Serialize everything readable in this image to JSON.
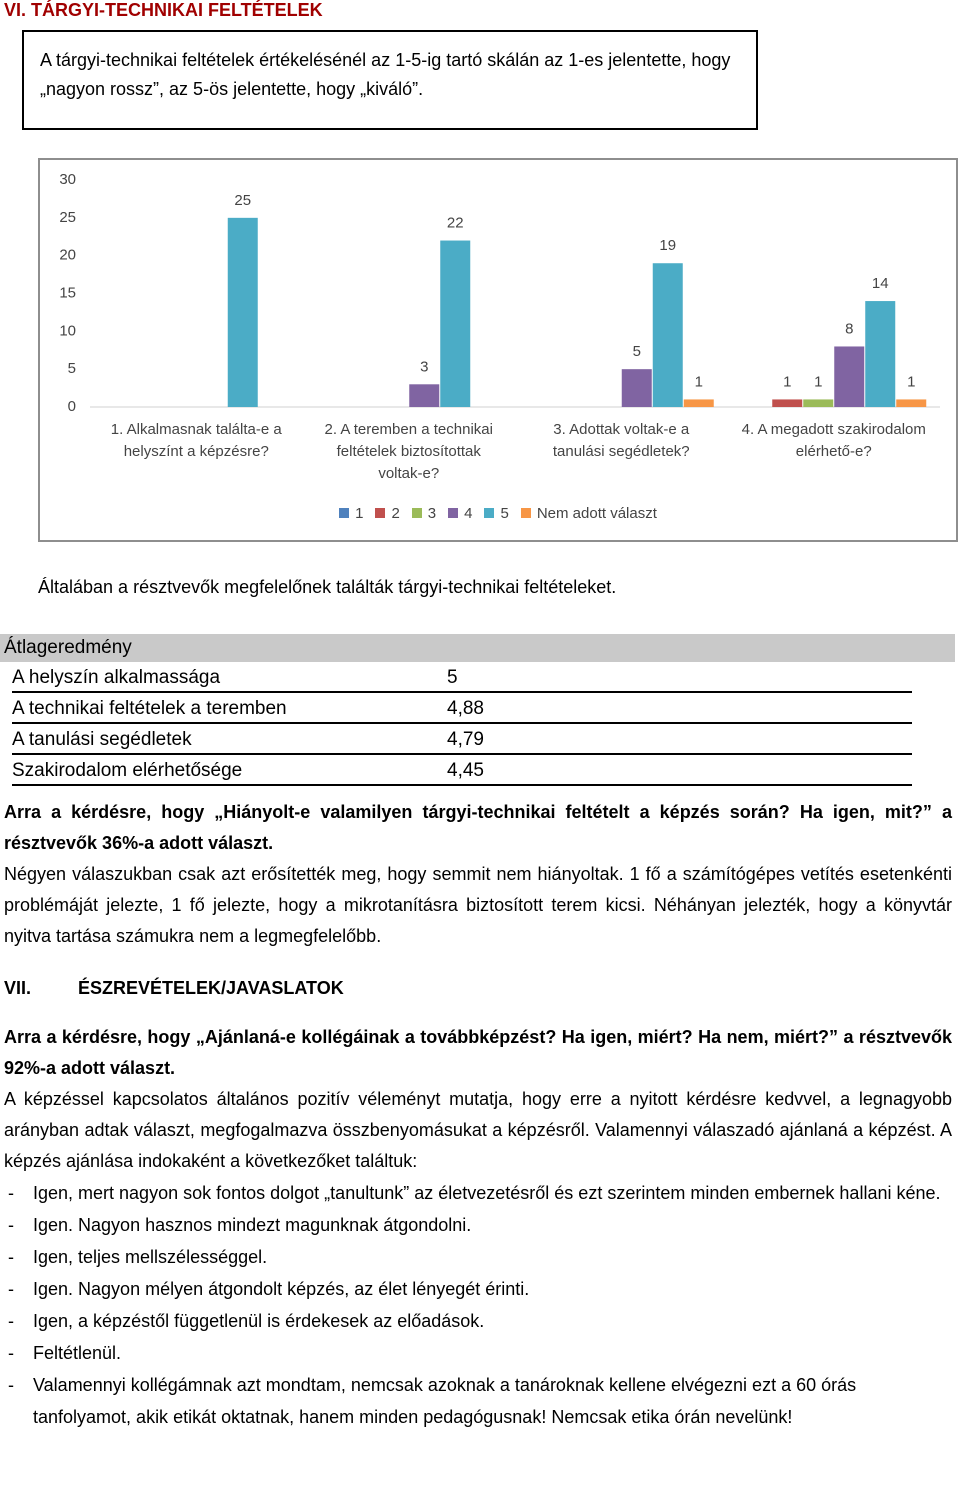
{
  "heading": "VI. TÁRGYI-TECHNIKAI FELTÉTELEK",
  "box_text": "A tárgyi-technikai feltételek értékelésénél az 1-5-ig tartó skálán az 1-es jelentette, hogy „nagyon rossz”, az 5-ös jelentette, hogy „kiváló”.",
  "chart_data": {
    "type": "bar",
    "categories": [
      "1. Alkalmasnak találta-e a helyszínt a képzésre?",
      "2. A teremben a technikai feltételek biztosítottak voltak-e?",
      "3. Adottak voltak-e a tanulási segédletek?",
      "4. A megadott szakirodalom elérhető-e?"
    ],
    "series": [
      {
        "name": "1",
        "color": "#4f81bd",
        "values": [
          null,
          null,
          null,
          null
        ]
      },
      {
        "name": "2",
        "color": "#c0504d",
        "values": [
          null,
          null,
          null,
          1
        ]
      },
      {
        "name": "3",
        "color": "#9bbb59",
        "values": [
          null,
          null,
          null,
          1
        ]
      },
      {
        "name": "4",
        "color": "#8064a2",
        "values": [
          null,
          3,
          5,
          8
        ]
      },
      {
        "name": "5",
        "color": "#4bacc6",
        "values": [
          25,
          22,
          19,
          14
        ]
      },
      {
        "name": "Nem adott választ",
        "color": "#f79646",
        "values": [
          null,
          null,
          1,
          1
        ]
      }
    ],
    "ylim": [
      0,
      30
    ],
    "yticks": [
      0,
      5,
      10,
      15,
      20,
      25,
      30
    ],
    "grid": false,
    "legend": "bottom"
  },
  "summary": "Általában a résztvevők megfelelőnek találták tárgyi-technikai feltételeket.",
  "table": {
    "title": "Átlageredmény",
    "rows": [
      [
        "A helyszín alkalmassága",
        "5"
      ],
      [
        "A technikai feltételek a teremben",
        "4,88"
      ],
      [
        "A tanulási segédletek",
        "4,79"
      ],
      [
        "Szakirodalom elérhetősége",
        "4,45"
      ]
    ]
  },
  "section6_question": "Arra a kérdésre, hogy „Hiányolt-e valamilyen tárgyi-technikai feltételt a képzés során? Ha igen, mit?” a résztvevők 36%-a adott választ.",
  "section6_text": "Négyen válaszukban csak azt erősítették meg, hogy semmit nem hiányoltak. 1 fő a számítógépes vetítés esetenkénti problémáját jelezte, 1 fő jelezte, hogy a mikrotanításra biztosított terem kicsi. Néhányan jelezték, hogy a könyvtár nyitva tartása számukra nem a legmegfelelőbb.",
  "section7": {
    "number": "VII.",
    "title": "ÉSZREVÉTELEK/JAVASLATOK"
  },
  "section7_question": "Arra a kérdésre, hogy „Ajánlaná-e kollégáinak a továbbképzést? Ha igen, miért? Ha nem, miért?” a résztvevők 92%-a adott választ.",
  "section7_text": "A képzéssel kapcsolatos általános pozitív véleményt mutatja, hogy erre a nyitott kérdésre kedvvel, a legnagyobb arányban adtak választ, megfogalmazva összbenyomásukat a képzésről. Valamennyi válaszadó ajánlaná a képzést. A képzés ajánlása indokaként a következőket találtuk:",
  "list": [
    "Igen, mert nagyon sok fontos dolgot „tanultunk” az életvezetésről és ezt szerintem minden embernek hallani kéne.",
    "Igen. Nagyon hasznos mindezt magunknak átgondolni.",
    "Igen, teljes mellszélességgel.",
    "Igen. Nagyon mélyen átgondolt képzés, az élet lényegét érinti.",
    "Igen, a képzéstől függetlenül is érdekesek az előadások.",
    "Feltétlenül.",
    "Valamennyi kollégámnak azt mondtam, nemcsak azoknak a tanároknak kellene elvégezni ezt a 60 órás tanfolyamot, akik etikát oktatnak, hanem minden pedagógusnak! Nemcsak etika órán nevelünk!"
  ]
}
